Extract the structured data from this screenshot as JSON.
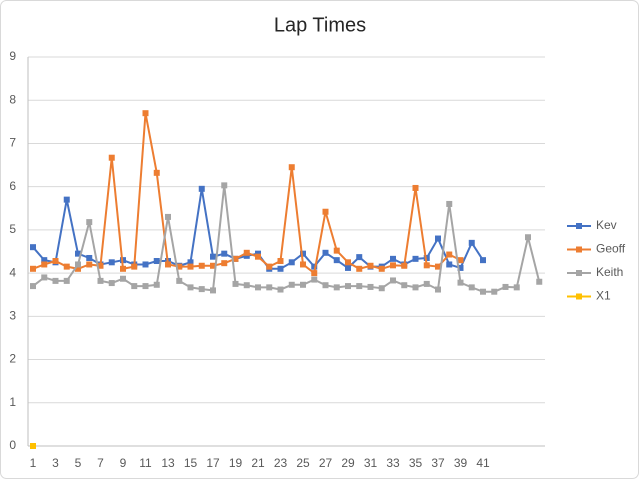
{
  "chart_data": {
    "type": "line",
    "title": "Lap Times",
    "categories": [
      1,
      2,
      3,
      4,
      5,
      6,
      7,
      8,
      9,
      10,
      11,
      12,
      13,
      14,
      15,
      16,
      17,
      18,
      19,
      20,
      21,
      22,
      23,
      24,
      25,
      26,
      27,
      28,
      29,
      30,
      31,
      32,
      33,
      34,
      35,
      36,
      37,
      38,
      39,
      40,
      41,
      null,
      null,
      null,
      null,
      null
    ],
    "ylim": [
      0,
      9
    ],
    "yticks": [
      0,
      1,
      2,
      3,
      4,
      5,
      6,
      7,
      8,
      9
    ],
    "grid": true,
    "legend": "right",
    "series": [
      {
        "name": "Kev",
        "color": "#4472c4",
        "values": [
          4.6,
          4.3,
          4.25,
          5.7,
          4.45,
          4.35,
          4.2,
          4.25,
          4.3,
          4.2,
          4.2,
          4.28,
          4.28,
          4.17,
          4.25,
          5.95,
          4.38,
          4.45,
          4.33,
          4.4,
          4.45,
          4.1,
          4.1,
          4.25,
          4.45,
          4.15,
          4.47,
          4.3,
          4.12,
          4.37,
          4.15,
          4.15,
          4.33,
          4.2,
          4.33,
          4.35,
          4.8,
          4.2,
          4.12,
          4.7,
          4.3,
          null,
          null,
          null,
          null,
          null
        ]
      },
      {
        "name": "Geoff",
        "color": "#ed7d31",
        "values": [
          4.1,
          4.2,
          4.28,
          4.15,
          4.1,
          4.2,
          4.17,
          6.67,
          4.1,
          4.15,
          7.7,
          6.32,
          4.2,
          4.15,
          4.15,
          4.17,
          4.17,
          4.23,
          4.33,
          4.47,
          4.38,
          4.15,
          4.28,
          6.45,
          4.2,
          4.0,
          5.42,
          4.52,
          4.25,
          4.1,
          4.17,
          4.1,
          4.18,
          4.17,
          5.97,
          4.18,
          4.15,
          4.43,
          4.3,
          null,
          null,
          null,
          null,
          null,
          null,
          null
        ]
      },
      {
        "name": "Keith",
        "color": "#a5a5a5",
        "values": [
          3.7,
          3.9,
          3.82,
          3.82,
          4.2,
          5.18,
          3.82,
          3.77,
          3.87,
          3.7,
          3.7,
          3.73,
          5.3,
          3.82,
          3.67,
          3.63,
          3.6,
          6.03,
          3.75,
          3.72,
          3.67,
          3.67,
          3.62,
          3.73,
          3.73,
          3.85,
          3.72,
          3.67,
          3.7,
          3.7,
          3.68,
          3.65,
          3.83,
          3.72,
          3.67,
          3.75,
          3.62,
          5.6,
          3.78,
          3.67,
          3.57,
          3.57,
          3.68,
          3.67,
          4.83,
          3.8
        ]
      },
      {
        "name": "X1",
        "color": "#ffc000",
        "values": [
          0,
          null,
          null,
          null,
          null,
          null,
          null,
          null,
          null,
          null,
          null,
          null,
          null,
          null,
          null,
          null,
          null,
          null,
          null,
          null,
          null,
          null,
          null,
          null,
          null,
          null,
          null,
          null,
          null,
          null,
          null,
          null,
          null,
          null,
          null,
          null,
          null,
          null,
          null,
          null,
          null,
          null,
          null,
          null,
          null,
          null
        ]
      }
    ]
  }
}
